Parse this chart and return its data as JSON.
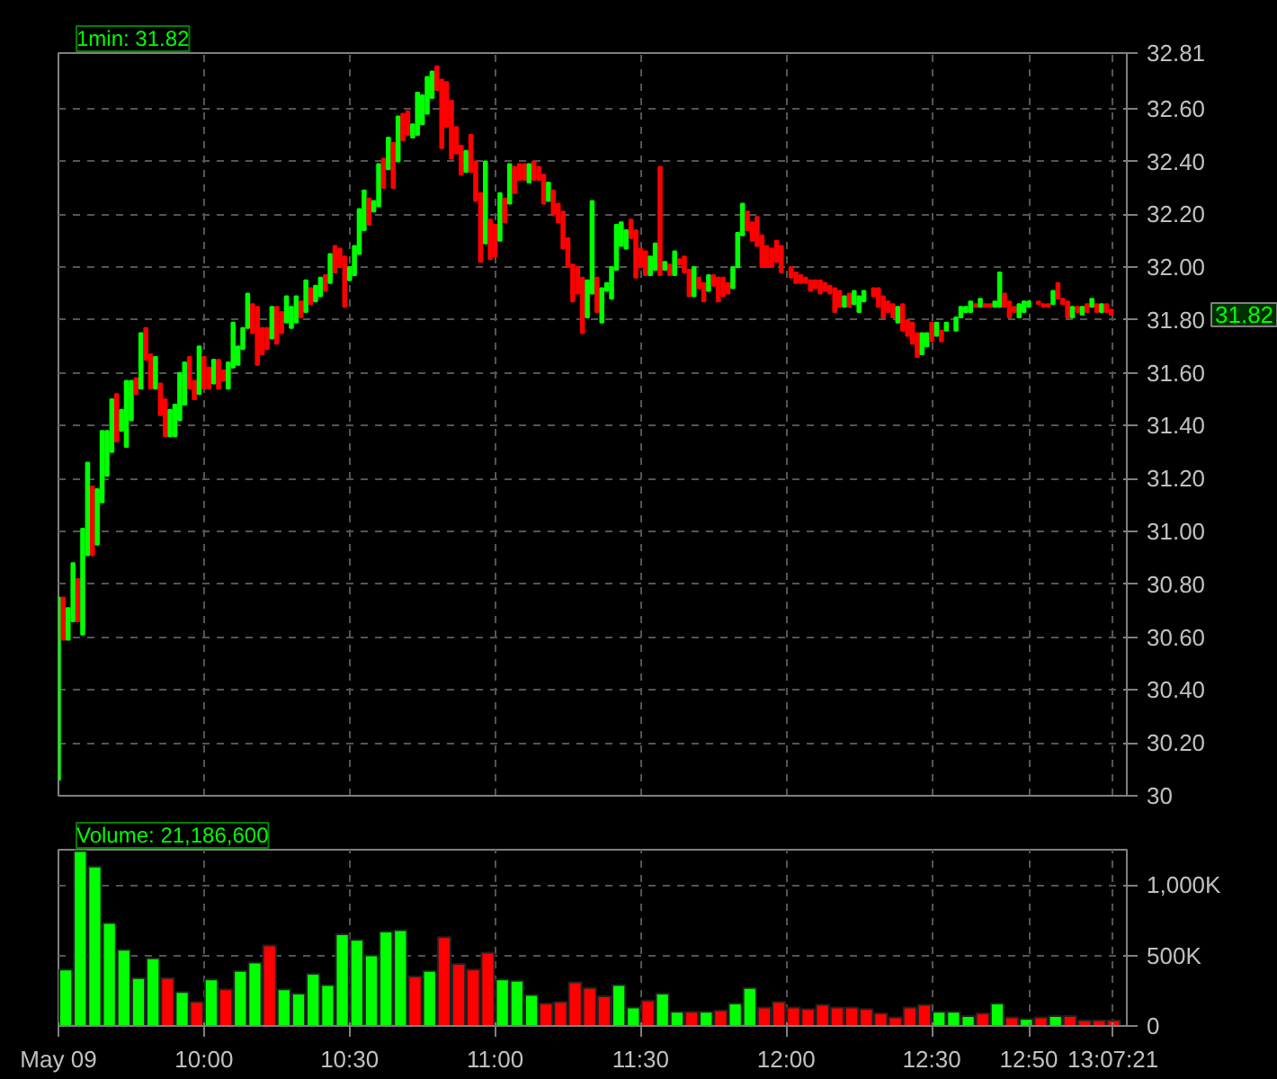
{
  "chart_data": [
    {
      "type": "candlestick",
      "title": "1min: 31.82",
      "x": [
        9.5,
        9.5167,
        9.5333,
        9.55,
        9.5667,
        9.5833,
        9.6,
        9.6167,
        9.6333,
        9.65,
        9.6667,
        9.6833,
        9.7,
        9.7167,
        9.7333,
        9.75,
        9.7667,
        9.7833,
        9.8,
        9.8167,
        9.8333,
        9.85,
        9.8667,
        9.8833,
        9.9,
        9.9167,
        9.9333,
        9.95,
        9.9667,
        9.9833,
        10,
        10.0167,
        10.0333,
        10.05,
        10.0667,
        10.0833,
        10.1,
        10.1167,
        10.1333,
        10.15,
        10.1667,
        10.1833,
        10.2,
        10.2167,
        10.2333,
        10.25,
        10.2667,
        10.2833,
        10.3,
        10.3167,
        10.3333,
        10.35,
        10.3667,
        10.3833,
        10.4,
        10.4167,
        10.4333,
        10.45,
        10.4667,
        10.4833,
        10.5,
        10.5167,
        10.5333,
        10.55,
        10.5667,
        10.5833,
        10.6,
        10.6167,
        10.6333,
        10.65,
        10.6667,
        10.6833,
        10.7,
        10.7167,
        10.7333,
        10.75,
        10.7667,
        10.7833,
        10.8,
        10.8167,
        10.8333,
        10.85,
        10.8667,
        10.8833,
        10.9,
        10.9167,
        10.9333,
        10.95,
        10.9667,
        10.9833,
        11,
        11.0167,
        11.0333,
        11.05,
        11.0667,
        11.0833,
        11.1,
        11.1167,
        11.1333,
        11.15,
        11.1667,
        11.1833,
        11.2,
        11.2167,
        11.2333,
        11.25,
        11.2667,
        11.2833,
        11.3,
        11.3167,
        11.3333,
        11.35,
        11.3667,
        11.3833,
        11.4,
        11.4167,
        11.4333,
        11.45,
        11.4667,
        11.4833,
        11.5,
        11.5167,
        11.5333,
        11.55,
        11.5667,
        11.5833,
        11.6,
        11.6167,
        11.6333,
        11.65,
        11.6667,
        11.6833,
        11.7,
        11.7167,
        11.7333,
        11.75,
        11.7667,
        11.7833,
        11.8,
        11.8167,
        11.8333,
        11.85,
        11.8667,
        11.8833,
        11.9,
        11.9167,
        11.9333,
        11.95,
        11.9667,
        11.9833,
        12.0167,
        12.0333,
        12.05,
        12.0667,
        12.0833,
        12.1,
        12.1167,
        12.1333,
        12.15,
        12.1667,
        12.1833,
        12.2,
        12.2167,
        12.2333,
        12.25,
        12.2667,
        12.3,
        12.3167,
        12.3333,
        12.35,
        12.3667,
        12.3833,
        12.4,
        12.4167,
        12.4333,
        12.45,
        12.4667,
        12.4833,
        12.5,
        12.5167,
        12.5333,
        12.55,
        12.5833,
        12.6,
        12.6167,
        12.6333,
        12.65,
        12.6667,
        12.6833,
        12.7,
        12.7167,
        12.7333,
        12.75,
        12.7667,
        12.7833,
        12.8,
        12.8167,
        12.8333,
        12.8667,
        12.8833,
        12.9,
        12.9167,
        12.9333,
        12.95,
        12.9667,
        12.9833,
        13,
        13.0167,
        13.0333,
        13.05,
        13.0667,
        13.0833,
        13.1,
        13.1167
      ],
      "ohlc": [
        [
          30.06,
          30.75,
          30.06,
          30.75
        ],
        [
          30.75,
          30.75,
          30.59,
          30.59
        ],
        [
          30.59,
          30.71,
          30.59,
          30.71
        ],
        [
          30.66,
          30.88,
          30.66,
          30.88
        ],
        [
          30.82,
          30.82,
          30.66,
          30.66
        ],
        [
          30.61,
          31.01,
          30.61,
          31.01
        ],
        [
          30.91,
          31.26,
          30.91,
          31.26
        ],
        [
          31.17,
          31.17,
          30.91,
          30.91
        ],
        [
          30.95,
          31.16,
          30.95,
          31.16
        ],
        [
          31.11,
          31.38,
          31.11,
          31.38
        ],
        [
          31.21,
          31.38,
          31.21,
          31.38
        ],
        [
          31.3,
          31.5,
          31.3,
          31.5
        ],
        [
          31.52,
          31.52,
          31.34,
          31.34
        ],
        [
          31.38,
          31.46,
          31.38,
          31.46
        ],
        [
          31.32,
          31.57,
          31.32,
          31.57
        ],
        [
          31.42,
          31.57,
          31.42,
          31.57
        ],
        [
          31.58,
          31.58,
          31.52,
          31.52
        ],
        [
          31.54,
          31.75,
          31.54,
          31.75
        ],
        [
          31.77,
          31.77,
          31.65,
          31.65
        ],
        [
          31.67,
          31.67,
          31.54,
          31.54
        ],
        [
          31.54,
          31.66,
          31.54,
          31.66
        ],
        [
          31.56,
          31.56,
          31.44,
          31.44
        ],
        [
          31.5,
          31.5,
          31.36,
          31.36
        ],
        [
          31.36,
          31.46,
          31.36,
          31.46
        ],
        [
          31.36,
          31.48,
          31.36,
          31.48
        ],
        [
          31.42,
          31.6,
          31.42,
          31.6
        ],
        [
          31.48,
          31.64,
          31.48,
          31.64
        ],
        [
          31.66,
          31.66,
          31.54,
          31.54
        ],
        [
          31.57,
          31.57,
          31.5,
          31.5
        ],
        [
          31.52,
          31.7,
          31.52,
          31.7
        ],
        [
          31.66,
          31.66,
          31.54,
          31.54
        ],
        [
          31.62,
          31.62,
          31.54,
          31.54
        ],
        [
          31.56,
          31.65,
          31.56,
          31.65
        ],
        [
          31.65,
          31.65,
          31.54,
          31.54
        ],
        [
          31.61,
          31.61,
          31.57,
          31.57
        ],
        [
          31.54,
          31.64,
          31.54,
          31.64
        ],
        [
          31.62,
          31.79,
          31.62,
          31.79
        ],
        [
          31.63,
          31.7,
          31.63,
          31.7
        ],
        [
          31.69,
          31.77,
          31.69,
          31.77
        ],
        [
          31.77,
          31.9,
          31.77,
          31.9
        ],
        [
          31.86,
          31.86,
          31.75,
          31.75
        ],
        [
          31.85,
          31.85,
          31.63,
          31.63
        ],
        [
          31.77,
          31.77,
          31.67,
          31.67
        ],
        [
          31.77,
          31.77,
          31.69,
          31.69
        ],
        [
          31.73,
          31.85,
          31.73,
          31.85
        ],
        [
          31.85,
          31.85,
          31.71,
          31.71
        ],
        [
          31.83,
          31.83,
          31.75,
          31.75
        ],
        [
          31.79,
          31.89,
          31.79,
          31.89
        ],
        [
          31.77,
          31.85,
          31.77,
          31.85
        ],
        [
          31.79,
          31.89,
          31.79,
          31.89
        ],
        [
          31.87,
          31.87,
          31.81,
          31.81
        ],
        [
          31.83,
          31.95,
          31.83,
          31.95
        ],
        [
          31.92,
          31.92,
          31.86,
          31.86
        ],
        [
          31.87,
          31.93,
          31.87,
          31.93
        ],
        [
          31.89,
          31.96,
          31.89,
          31.96
        ],
        [
          31.97,
          31.97,
          31.91,
          31.91
        ],
        [
          31.94,
          32.05,
          31.94,
          32.05
        ],
        [
          32.08,
          32.08,
          31.98,
          31.98
        ],
        [
          32.07,
          32.07,
          32.0,
          32.0
        ],
        [
          32.04,
          32.04,
          31.85,
          31.85
        ],
        [
          31.95,
          32.0,
          31.95,
          32.0
        ],
        [
          31.97,
          32.08,
          31.97,
          32.08
        ],
        [
          32.05,
          32.22,
          32.05,
          32.22
        ],
        [
          32.14,
          32.29,
          32.14,
          32.29
        ],
        [
          32.26,
          32.26,
          32.16,
          32.16
        ],
        [
          32.21,
          32.25,
          32.21,
          32.25
        ],
        [
          32.23,
          32.39,
          32.23,
          32.39
        ],
        [
          32.41,
          32.41,
          32.3,
          32.3
        ],
        [
          32.37,
          32.49,
          32.37,
          32.49
        ],
        [
          32.47,
          32.47,
          32.3,
          32.3
        ],
        [
          32.4,
          32.57,
          32.4,
          32.57
        ],
        [
          32.58,
          32.58,
          32.48,
          32.48
        ],
        [
          32.59,
          32.59,
          32.5,
          32.5
        ],
        [
          32.49,
          32.54,
          32.49,
          32.54
        ],
        [
          32.5,
          32.66,
          32.5,
          32.66
        ],
        [
          32.54,
          32.65,
          32.54,
          32.65
        ],
        [
          32.58,
          32.72,
          32.58,
          32.72
        ],
        [
          32.64,
          32.74,
          32.64,
          32.74
        ],
        [
          32.76,
          32.76,
          32.67,
          32.67
        ],
        [
          32.71,
          32.71,
          32.45,
          32.45
        ],
        [
          32.7,
          32.7,
          32.53,
          32.53
        ],
        [
          32.63,
          32.63,
          32.41,
          32.41
        ],
        [
          32.53,
          32.53,
          32.43,
          32.43
        ],
        [
          32.46,
          32.46,
          32.35,
          32.35
        ],
        [
          32.36,
          32.44,
          32.36,
          32.44
        ],
        [
          32.5,
          32.5,
          32.36,
          32.36
        ],
        [
          32.4,
          32.4,
          32.25,
          32.25
        ],
        [
          32.28,
          32.28,
          32.02,
          32.02
        ],
        [
          32.09,
          32.4,
          32.09,
          32.4
        ],
        [
          32.18,
          32.18,
          32.03,
          32.03
        ],
        [
          32.16,
          32.16,
          32.04,
          32.04
        ],
        [
          32.1,
          32.28,
          32.1,
          32.28
        ],
        [
          32.26,
          32.26,
          32.17,
          32.17
        ],
        [
          32.24,
          32.39,
          32.24,
          32.39
        ],
        [
          32.38,
          32.38,
          32.28,
          32.28
        ],
        [
          32.39,
          32.39,
          32.33,
          32.33
        ],
        [
          32.39,
          32.39,
          32.33,
          32.33
        ],
        [
          32.32,
          32.39,
          32.32,
          32.39
        ],
        [
          32.4,
          32.4,
          32.33,
          32.33
        ],
        [
          32.38,
          32.38,
          32.33,
          32.33
        ],
        [
          32.35,
          32.35,
          32.24,
          32.24
        ],
        [
          32.25,
          32.32,
          32.25,
          32.32
        ],
        [
          32.29,
          32.29,
          32.2,
          32.2
        ],
        [
          32.24,
          32.24,
          32.17,
          32.17
        ],
        [
          32.21,
          32.21,
          32.07,
          32.07
        ],
        [
          32.11,
          32.11,
          32.0,
          32.0
        ],
        [
          32.01,
          32.01,
          31.87,
          31.87
        ],
        [
          32.0,
          32.0,
          31.9,
          31.9
        ],
        [
          31.96,
          31.96,
          31.75,
          31.75
        ],
        [
          31.81,
          31.95,
          31.81,
          31.95
        ],
        [
          31.9,
          32.25,
          31.9,
          32.25
        ],
        [
          31.96,
          31.96,
          31.83,
          31.83
        ],
        [
          31.79,
          31.92,
          31.79,
          31.92
        ],
        [
          31.91,
          31.94,
          31.91,
          31.94
        ],
        [
          31.88,
          32.0,
          31.88,
          32.0
        ],
        [
          31.99,
          32.16,
          31.99,
          32.16
        ],
        [
          32.08,
          32.17,
          32.08,
          32.17
        ],
        [
          32.07,
          32.14,
          32.07,
          32.14
        ],
        [
          32.18,
          32.18,
          32.11,
          32.11
        ],
        [
          32.14,
          32.14,
          31.96,
          31.96
        ],
        [
          32.07,
          32.07,
          32.0,
          32.0
        ],
        [
          32.06,
          32.06,
          31.97,
          31.97
        ],
        [
          31.97,
          32.04,
          31.97,
          32.04
        ],
        [
          31.99,
          32.09,
          31.99,
          32.09
        ],
        [
          32.38,
          32.38,
          31.97,
          31.97
        ],
        [
          31.99,
          32.02,
          31.99,
          32.02
        ],
        [
          32.01,
          32.01,
          31.97,
          31.97
        ],
        [
          31.97,
          32.06,
          31.97,
          32.06
        ],
        [
          32.03,
          32.03,
          32.01,
          32.01
        ],
        [
          32.04,
          32.04,
          31.98,
          31.98
        ],
        [
          31.99,
          31.99,
          31.89,
          31.89
        ],
        [
          31.89,
          32.0,
          31.89,
          32.0
        ],
        [
          31.96,
          31.96,
          31.92,
          31.92
        ],
        [
          31.94,
          31.94,
          31.87,
          31.87
        ],
        [
          31.91,
          31.97,
          31.91,
          31.97
        ],
        [
          31.97,
          31.97,
          31.93,
          31.93
        ],
        [
          31.96,
          31.96,
          31.87,
          31.87
        ],
        [
          31.96,
          31.96,
          31.89,
          31.89
        ],
        [
          31.94,
          31.94,
          31.9,
          31.9
        ],
        [
          31.92,
          32.0,
          31.92,
          32.0
        ],
        [
          32.0,
          32.13,
          32.0,
          32.13
        ],
        [
          32.12,
          32.24,
          32.12,
          32.24
        ],
        [
          32.21,
          32.21,
          32.14,
          32.14
        ],
        [
          32.17,
          32.17,
          32.1,
          32.1
        ],
        [
          32.19,
          32.19,
          32.08,
          32.08
        ],
        [
          32.12,
          32.12,
          32.0,
          32.0
        ],
        [
          32.08,
          32.08,
          32.0,
          32.0
        ],
        [
          32.07,
          32.07,
          32.0,
          32.0
        ],
        [
          32.1,
          32.1,
          32.02,
          32.02
        ],
        [
          32.08,
          32.08,
          31.98,
          31.98
        ],
        [
          32.0,
          32.0,
          31.96,
          31.96
        ],
        [
          31.98,
          31.98,
          31.94,
          31.94
        ],
        [
          31.97,
          31.97,
          31.94,
          31.94
        ],
        [
          31.96,
          31.96,
          31.94,
          31.94
        ],
        [
          31.95,
          31.95,
          31.91,
          31.91
        ],
        [
          31.95,
          31.95,
          31.92,
          31.92
        ],
        [
          31.95,
          31.95,
          31.9,
          31.9
        ],
        [
          31.94,
          31.94,
          31.91,
          31.91
        ],
        [
          31.93,
          31.93,
          31.9,
          31.9
        ],
        [
          31.92,
          31.92,
          31.83,
          31.83
        ],
        [
          31.91,
          31.91,
          31.85,
          31.85
        ],
        [
          31.85,
          31.89,
          31.85,
          31.89
        ],
        [
          31.9,
          31.9,
          31.85,
          31.85
        ],
        [
          31.86,
          31.91,
          31.86,
          31.91
        ],
        [
          31.83,
          31.89,
          31.83,
          31.89
        ],
        [
          31.87,
          31.91,
          31.87,
          31.91
        ],
        [
          31.92,
          31.92,
          31.89,
          31.89
        ],
        [
          31.92,
          31.92,
          31.85,
          31.85
        ],
        [
          31.89,
          31.89,
          31.81,
          31.81
        ],
        [
          31.87,
          31.87,
          31.83,
          31.83
        ],
        [
          31.86,
          31.86,
          31.81,
          31.81
        ],
        [
          31.79,
          31.85,
          31.79,
          31.85
        ],
        [
          31.86,
          31.86,
          31.76,
          31.76
        ],
        [
          31.8,
          31.8,
          31.74,
          31.74
        ],
        [
          31.79,
          31.79,
          31.71,
          31.71
        ],
        [
          31.75,
          31.75,
          31.66,
          31.66
        ],
        [
          31.67,
          31.75,
          31.67,
          31.75
        ],
        [
          31.7,
          31.75,
          31.7,
          31.75
        ],
        [
          31.79,
          31.79,
          31.72,
          31.72
        ],
        [
          31.74,
          31.79,
          31.74,
          31.79
        ],
        [
          31.76,
          31.76,
          31.72,
          31.72
        ],
        [
          31.76,
          31.79,
          31.76,
          31.79
        ],
        [
          31.76,
          31.81,
          31.76,
          31.81
        ],
        [
          31.81,
          31.85,
          31.81,
          31.85
        ],
        [
          31.83,
          31.85,
          31.83,
          31.85
        ],
        [
          31.83,
          31.87,
          31.83,
          31.87
        ],
        [
          31.86,
          31.86,
          31.85,
          31.85
        ],
        [
          31.85,
          31.88,
          31.85,
          31.88
        ],
        [
          31.86,
          31.86,
          31.85,
          31.85
        ],
        [
          31.86,
          31.86,
          31.85,
          31.85
        ],
        [
          31.85,
          31.87,
          31.85,
          31.87
        ],
        [
          31.85,
          31.98,
          31.85,
          31.98
        ],
        [
          31.9,
          31.9,
          31.85,
          31.85
        ],
        [
          31.87,
          31.87,
          31.81,
          31.81
        ],
        [
          31.85,
          31.85,
          31.83,
          31.83
        ],
        [
          31.81,
          31.86,
          31.81,
          31.86
        ],
        [
          31.83,
          31.87,
          31.83,
          31.87
        ],
        [
          31.85,
          31.87,
          31.85,
          31.87
        ],
        [
          31.87,
          31.87,
          31.86,
          31.86
        ],
        [
          31.86,
          31.86,
          31.85,
          31.85
        ],
        [
          31.86,
          31.86,
          31.85,
          31.85
        ],
        [
          31.86,
          31.91,
          31.86,
          31.91
        ],
        [
          31.94,
          31.94,
          31.88,
          31.88
        ],
        [
          31.88,
          31.88,
          31.86,
          31.86
        ],
        [
          31.87,
          31.87,
          31.81,
          31.81
        ],
        [
          31.81,
          31.85,
          31.81,
          31.85
        ],
        [
          31.85,
          31.85,
          31.83,
          31.83
        ],
        [
          31.82,
          31.85,
          31.82,
          31.85
        ],
        [
          31.86,
          31.86,
          31.83,
          31.83
        ],
        [
          31.85,
          31.88,
          31.85,
          31.88
        ],
        [
          31.86,
          31.86,
          31.83,
          31.83
        ],
        [
          31.83,
          31.86,
          31.83,
          31.86
        ],
        [
          31.86,
          31.86,
          31.83,
          31.83
        ],
        [
          31.84,
          31.84,
          31.82,
          31.82
        ]
      ],
      "colors": [
        "#00ff00",
        "#ff0000",
        "#00ff00",
        "#00ff00",
        "#ff0000",
        "#00ff00",
        "#00ff00",
        "#ff0000",
        "#00ff00",
        "#00ff00",
        "#00ff00",
        "#00ff00",
        "#ff0000",
        "#00ff00",
        "#00ff00",
        "#00ff00",
        "#ff0000",
        "#00ff00",
        "#ff0000",
        "#ff0000",
        "#00ff00",
        "#ff0000",
        "#ff0000",
        "#00ff00",
        "#00ff00",
        "#00ff00",
        "#00ff00",
        "#ff0000",
        "#ff0000",
        "#00ff00",
        "#ff0000",
        "#ff0000",
        "#00ff00",
        "#ff0000",
        "#ff0000",
        "#00ff00",
        "#00ff00",
        "#00ff00",
        "#00ff00",
        "#00ff00",
        "#ff0000",
        "#ff0000",
        "#ff0000",
        "#ff0000",
        "#00ff00",
        "#ff0000",
        "#ff0000",
        "#00ff00",
        "#00ff00",
        "#00ff00",
        "#ff0000",
        "#00ff00",
        "#ff0000",
        "#00ff00",
        "#00ff00",
        "#ff0000",
        "#00ff00",
        "#ff0000",
        "#ff0000",
        "#ff0000",
        "#00ff00",
        "#00ff00",
        "#00ff00",
        "#00ff00",
        "#ff0000",
        "#00ff00",
        "#00ff00",
        "#ff0000",
        "#00ff00",
        "#ff0000",
        "#00ff00",
        "#ff0000",
        "#ff0000",
        "#00ff00",
        "#00ff00",
        "#00ff00",
        "#00ff00",
        "#00ff00",
        "#ff0000",
        "#ff0000",
        "#ff0000",
        "#ff0000",
        "#ff0000",
        "#ff0000",
        "#00ff00",
        "#ff0000",
        "#ff0000",
        "#ff0000",
        "#00ff00",
        "#ff0000",
        "#ff0000",
        "#00ff00",
        "#ff0000",
        "#00ff00",
        "#ff0000",
        "#ff0000",
        "#ff0000",
        "#00ff00",
        "#ff0000",
        "#ff0000",
        "#ff0000",
        "#00ff00",
        "#ff0000",
        "#ff0000",
        "#ff0000",
        "#ff0000",
        "#ff0000",
        "#ff0000",
        "#ff0000",
        "#00ff00",
        "#00ff00",
        "#ff0000",
        "#00ff00",
        "#00ff00",
        "#00ff00",
        "#00ff00",
        "#00ff00",
        "#00ff00",
        "#ff0000",
        "#ff0000",
        "#ff0000",
        "#ff0000",
        "#00ff00",
        "#00ff00",
        "#ff0000",
        "#00ff00",
        "#ff0000",
        "#00ff00",
        "#ff0000",
        "#ff0000",
        "#ff0000",
        "#00ff00",
        "#ff0000",
        "#ff0000",
        "#00ff00",
        "#ff0000",
        "#ff0000",
        "#ff0000",
        "#ff0000",
        "#00ff00",
        "#00ff00",
        "#00ff00",
        "#ff0000",
        "#ff0000",
        "#ff0000",
        "#ff0000",
        "#ff0000",
        "#ff0000",
        "#ff0000",
        "#ff0000",
        "#ff0000",
        "#ff0000",
        "#ff0000",
        "#ff0000",
        "#ff0000",
        "#ff0000",
        "#ff0000",
        "#ff0000",
        "#ff0000",
        "#ff0000",
        "#ff0000",
        "#00ff00",
        "#ff0000",
        "#00ff00",
        "#00ff00",
        "#00ff00",
        "#ff0000",
        "#ff0000",
        "#ff0000",
        "#ff0000",
        "#ff0000",
        "#00ff00",
        "#ff0000",
        "#ff0000",
        "#ff0000",
        "#ff0000",
        "#00ff00",
        "#00ff00",
        "#ff0000",
        "#00ff00",
        "#ff0000",
        "#00ff00",
        "#00ff00",
        "#00ff00",
        "#00ff00",
        "#00ff00",
        "#ff0000",
        "#00ff00",
        "#ff0000",
        "#ff0000",
        "#00ff00",
        "#00ff00",
        "#ff0000",
        "#ff0000",
        "#ff0000",
        "#00ff00",
        "#00ff00",
        "#00ff00",
        "#ff0000",
        "#ff0000",
        "#ff0000",
        "#00ff00",
        "#ff0000",
        "#ff0000",
        "#ff0000",
        "#00ff00",
        "#ff0000",
        "#00ff00",
        "#ff0000",
        "#00ff00",
        "#ff0000",
        "#00ff00",
        "#ff0000",
        "#ff0000"
      ],
      "xlim": [
        9.5,
        13.17
      ],
      "ylim": [
        30,
        32.81
      ],
      "xticks": [
        {
          "value": 9.5,
          "label": null
        },
        {
          "value": 10,
          "label": null
        },
        {
          "value": 10.5,
          "label": null
        },
        {
          "value": 11,
          "label": null
        },
        {
          "value": 11.5,
          "label": null
        },
        {
          "value": 12,
          "label": null
        },
        {
          "value": 12.5,
          "label": null
        },
        {
          "value": 12.8333,
          "label": null
        },
        {
          "value": 13.1225,
          "label": null
        }
      ],
      "yticks": [
        30,
        {
          "value": 30.2,
          "label": "30.20"
        },
        {
          "value": 30.4,
          "label": "30.40"
        },
        {
          "value": 30.6,
          "label": "30.60"
        },
        {
          "value": 30.8,
          "label": "30.80"
        },
        {
          "value": 31,
          "label": "31.00"
        },
        {
          "value": 31.2,
          "label": "31.20"
        },
        {
          "value": 31.4,
          "label": "31.40"
        },
        {
          "value": 31.6,
          "label": "31.60"
        },
        {
          "value": 31.8,
          "label": "31.80"
        },
        {
          "value": 32,
          "label": "32.00"
        },
        {
          "value": 32.2,
          "label": "32.20"
        },
        {
          "value": 32.4,
          "label": "32.40"
        },
        {
          "value": 32.6,
          "label": "32.60"
        },
        {
          "value": 32.81,
          "label": "32.81"
        }
      ],
      "annotations": [
        "31.82"
      ],
      "tick_labels": "y",
      "grid": true
    },
    {
      "type": "bar",
      "title": "Volume: 21,186,600",
      "x": [
        9.525,
        9.575,
        9.625,
        9.675,
        9.725,
        9.775,
        9.825,
        9.875,
        9.925,
        9.975,
        10.025,
        10.075,
        10.125,
        10.175,
        10.225,
        10.275,
        10.325,
        10.375,
        10.425,
        10.475,
        10.525,
        10.575,
        10.625,
        10.675,
        10.725,
        10.775,
        10.825,
        10.875,
        10.925,
        10.975,
        11.025,
        11.075,
        11.125,
        11.175,
        11.225,
        11.275,
        11.325,
        11.375,
        11.425,
        11.475,
        11.525,
        11.575,
        11.625,
        11.675,
        11.725,
        11.775,
        11.825,
        11.875,
        11.925,
        11.975,
        12.025,
        12.075,
        12.125,
        12.175,
        12.225,
        12.275,
        12.325,
        12.375,
        12.425,
        12.475,
        12.525,
        12.575,
        12.625,
        12.675,
        12.725,
        12.775,
        12.825,
        12.875,
        12.925,
        12.975,
        13.025,
        13.075,
        13.125
      ],
      "values": [
        400000,
        1240000,
        1130000,
        730000,
        540000,
        340000,
        480000,
        340000,
        240000,
        170000,
        330000,
        260000,
        390000,
        450000,
        570000,
        260000,
        230000,
        370000,
        290000,
        650000,
        610000,
        500000,
        670000,
        680000,
        350000,
        390000,
        630000,
        440000,
        400000,
        520000,
        330000,
        320000,
        220000,
        160000,
        170000,
        310000,
        270000,
        210000,
        290000,
        130000,
        180000,
        230000,
        100000,
        100000,
        100000,
        110000,
        160000,
        270000,
        130000,
        170000,
        130000,
        120000,
        150000,
        130000,
        130000,
        120000,
        90000,
        60000,
        130000,
        150000,
        100000,
        100000,
        70000,
        90000,
        160000,
        60000,
        50000,
        60000,
        70000,
        70000,
        40000,
        40000,
        40000
      ],
      "colors": [
        "#00ff00",
        "#00ff00",
        "#00ff00",
        "#00ff00",
        "#00ff00",
        "#00ff00",
        "#00ff00",
        "#ff0000",
        "#00ff00",
        "#ff0000",
        "#00ff00",
        "#ff0000",
        "#00ff00",
        "#00ff00",
        "#ff0000",
        "#00ff00",
        "#00ff00",
        "#00ff00",
        "#00ff00",
        "#00ff00",
        "#00ff00",
        "#00ff00",
        "#00ff00",
        "#00ff00",
        "#ff0000",
        "#00ff00",
        "#ff0000",
        "#ff0000",
        "#ff0000",
        "#ff0000",
        "#00ff00",
        "#00ff00",
        "#00ff00",
        "#ff0000",
        "#ff0000",
        "#ff0000",
        "#ff0000",
        "#ff0000",
        "#00ff00",
        "#00ff00",
        "#ff0000",
        "#00ff00",
        "#00ff00",
        "#ff0000",
        "#00ff00",
        "#ff0000",
        "#00ff00",
        "#00ff00",
        "#ff0000",
        "#ff0000",
        "#ff0000",
        "#ff0000",
        "#ff0000",
        "#ff0000",
        "#ff0000",
        "#ff0000",
        "#ff0000",
        "#ff0000",
        "#ff0000",
        "#ff0000",
        "#00ff00",
        "#00ff00",
        "#00ff00",
        "#ff0000",
        "#00ff00",
        "#ff0000",
        "#00ff00",
        "#ff0000",
        "#00ff00",
        "#ff0000",
        "#ff0000",
        "#ff0000",
        "#ff0000"
      ],
      "xlim": [
        9.5,
        13.17
      ],
      "ylim": [
        0,
        1250000
      ],
      "xticks": [
        {
          "value": 9.5,
          "label": "May 09"
        },
        {
          "value": 10,
          "label": "10:00"
        },
        {
          "value": 10.5,
          "label": "10:30"
        },
        {
          "value": 11,
          "label": "11:00"
        },
        {
          "value": 11.5,
          "label": "11:30"
        },
        {
          "value": 12,
          "label": "12:00"
        },
        {
          "value": 12.5,
          "label": "12:30"
        },
        {
          "value": 12.8333,
          "label": "12:50"
        },
        {
          "value": 13.1225,
          "label": "13:07:21"
        }
      ],
      "yticks": [
        0,
        {
          "value": 500000,
          "label": "500K"
        },
        {
          "value": 1000000,
          "label": "1,000K"
        }
      ],
      "grid": true
    }
  ]
}
